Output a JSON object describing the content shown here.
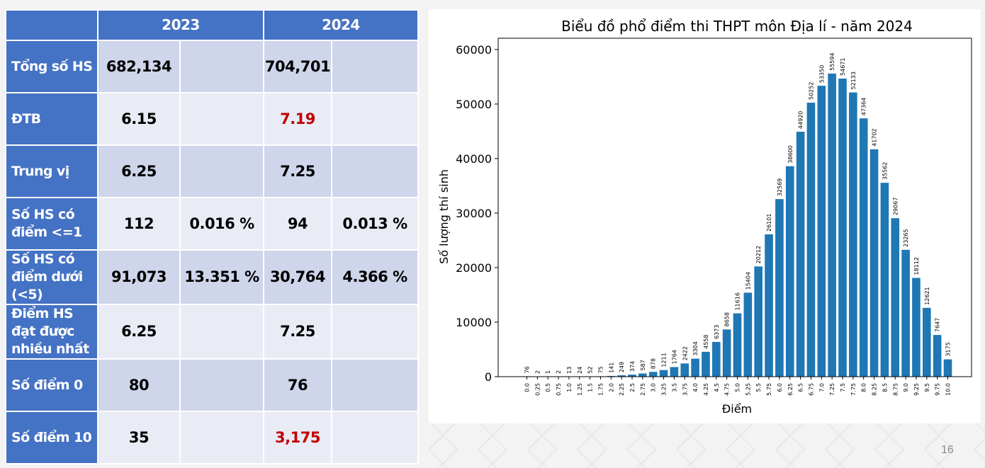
{
  "table": {
    "columns": [
      "",
      "2023",
      "2024"
    ],
    "rows": [
      {
        "label": "Tổng số HS",
        "v2023": "682,134",
        "p2023": "",
        "v2024": "704,701",
        "p2024": "",
        "highlight2024": false
      },
      {
        "label": "ĐTB",
        "v2023": "6.15",
        "p2023": "",
        "v2024": "7.19",
        "p2024": "",
        "highlight2024": true
      },
      {
        "label": "Trung vị",
        "v2023": "6.25",
        "p2023": "",
        "v2024": "7.25",
        "p2024": "",
        "highlight2024": false
      },
      {
        "label": "Số HS có điểm <=1",
        "v2023": "112",
        "p2023": "0.016 %",
        "v2024": "94",
        "p2024": "0.013 %",
        "highlight2024": false
      },
      {
        "label": "Số HS có điểm dưới (<5)",
        "v2023": "91,073",
        "p2023": "13.351 %",
        "v2024": "30,764",
        "p2024": "4.366 %",
        "highlight2024": false
      },
      {
        "label": "Điểm HS đạt được nhiều nhất",
        "v2023": "6.25",
        "p2023": "",
        "v2024": "7.25",
        "p2024": "",
        "highlight2024": false
      },
      {
        "label": "Số điểm 0",
        "v2023": "80",
        "p2023": "",
        "v2024": "76",
        "p2024": "",
        "highlight2024": false
      },
      {
        "label": "Số điểm 10",
        "v2023": "35",
        "p2023": "",
        "v2024": "3,175",
        "p2024": "",
        "highlight2024": true
      }
    ]
  },
  "chart_data": {
    "type": "bar",
    "title": "Biểu đồ phổ điểm thi THPT môn Địa lí - năm 2024",
    "xlabel": "Điểm",
    "ylabel": "Số lượng thí sinh",
    "categories": [
      "0.0",
      "0.25",
      "0.5",
      "0.75",
      "1.0",
      "1.25",
      "1.5",
      "1.75",
      "2.0",
      "2.25",
      "2.5",
      "2.75",
      "3.0",
      "3.25",
      "3.5",
      "3.75",
      "4.0",
      "4.25",
      "4.5",
      "4.75",
      "5.0",
      "5.25",
      "5.5",
      "5.75",
      "6.0",
      "6.25",
      "6.5",
      "6.75",
      "7.0",
      "7.25",
      "7.5",
      "7.75",
      "8.0",
      "8.25",
      "8.5",
      "8.75",
      "9.0",
      "9.25",
      "9.5",
      "9.75",
      "10.0"
    ],
    "values": [
      76,
      2,
      1,
      2,
      13,
      24,
      52,
      75,
      141,
      249,
      374,
      587,
      878,
      1211,
      1764,
      2422,
      3304,
      4558,
      6373,
      8658,
      11616,
      15404,
      20212,
      26101,
      32569,
      38600,
      44920,
      50252,
      53350,
      55594,
      54671,
      52133,
      47364,
      41702,
      35562,
      29067,
      23265,
      18112,
      12621,
      7647,
      3175
    ],
    "yticks": [
      0,
      10000,
      20000,
      30000,
      40000,
      50000,
      60000
    ],
    "ylim": [
      0,
      60000
    ],
    "bar_color": "#1f77b4",
    "grid": false
  },
  "page_number": "16",
  "colors": {
    "header_blue": "#4472c4",
    "row_dark": "#cfd5ea",
    "row_light": "#e9ebf5",
    "highlight_red": "#c00000"
  }
}
